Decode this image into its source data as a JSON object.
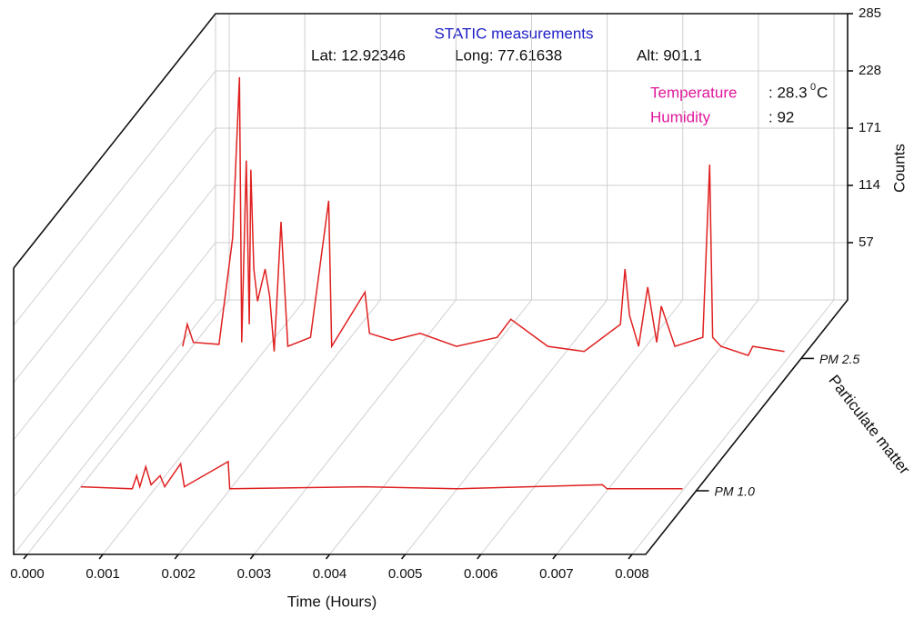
{
  "chart_data": {
    "type": "waterfall",
    "title": "STATIC measurements",
    "annotations": {
      "lat": "Lat: 12.92346",
      "long": "Long: 77.61638",
      "alt": "Alt: 901.1",
      "temperature_label": "Temperature",
      "temperature_value": ": 28.3",
      "temperature_sup": "0",
      "temperature_unit": "C",
      "humidity_label": "Humidity",
      "humidity_value": ": 92"
    },
    "x_label": "Time (Hours)",
    "y_label": "Counts",
    "z_label": "Particulate matter",
    "xlim": [
      0,
      0.008
    ],
    "xticks": [
      {
        "value": 0,
        "label": "0.000"
      },
      {
        "value": 0.001,
        "label": "0.001"
      },
      {
        "value": 0.002,
        "label": "0.002"
      },
      {
        "value": 0.003,
        "label": "0.003"
      },
      {
        "value": 0.004,
        "label": "0.004"
      },
      {
        "value": 0.005,
        "label": "0.005"
      },
      {
        "value": 0.006,
        "label": "0.006"
      },
      {
        "value": 0.007,
        "label": "0.007"
      },
      {
        "value": 0.008,
        "label": "0.008"
      }
    ],
    "ylim": [
      0,
      285
    ],
    "yticks": [
      57,
      114,
      171,
      228,
      285
    ],
    "grid": true,
    "series": [
      {
        "name": "PM 1.0",
        "color": "#e02020",
        "x": [
          4e-05,
          0.00072,
          0.00078,
          0.00082,
          0.0009,
          0.00097,
          0.00109,
          0.00115,
          0.00136,
          0.00141,
          0.00199,
          0.00201,
          0.0038,
          0.005,
          0.00694,
          0.007,
          0.008
        ],
        "values": [
          4,
          2,
          15,
          4,
          24,
          6,
          15,
          4,
          27,
          4,
          29,
          2,
          4,
          2,
          6,
          2,
          2
        ]
      },
      {
        "name": "PM 2.5",
        "color": "#e02020",
        "x": [
          0,
          6e-05,
          0.00014,
          0.00048,
          0.00066,
          0.00075,
          0.00078,
          0.00084,
          0.00088,
          0.0009,
          0.00094,
          0.00099,
          0.00109,
          0.00115,
          0.00121,
          0.0013,
          0.00139,
          0.00169,
          0.00193,
          0.00197,
          0.00241,
          0.00247,
          0.00277,
          0.00314,
          0.00362,
          0.00416,
          0.00434,
          0.00483,
          0.00531,
          0.00579,
          0.00585,
          0.00591,
          0.00603,
          0.00615,
          0.00627,
          0.00633,
          0.00651,
          0.00688,
          0.00697,
          0.00701,
          0.00712,
          0.00748,
          0.00754,
          0.00796
        ],
        "values": [
          12,
          34,
          16,
          14,
          120,
          280,
          16,
          197,
          34,
          188,
          89,
          57,
          89,
          62,
          7,
          136,
          12,
          21,
          157,
          12,
          66,
          25,
          18,
          25,
          12,
          21,
          39,
          12,
          7,
          34,
          89,
          43,
          12,
          71,
          16,
          52,
          12,
          21,
          193,
          21,
          12,
          3,
          12,
          7
        ]
      }
    ]
  }
}
